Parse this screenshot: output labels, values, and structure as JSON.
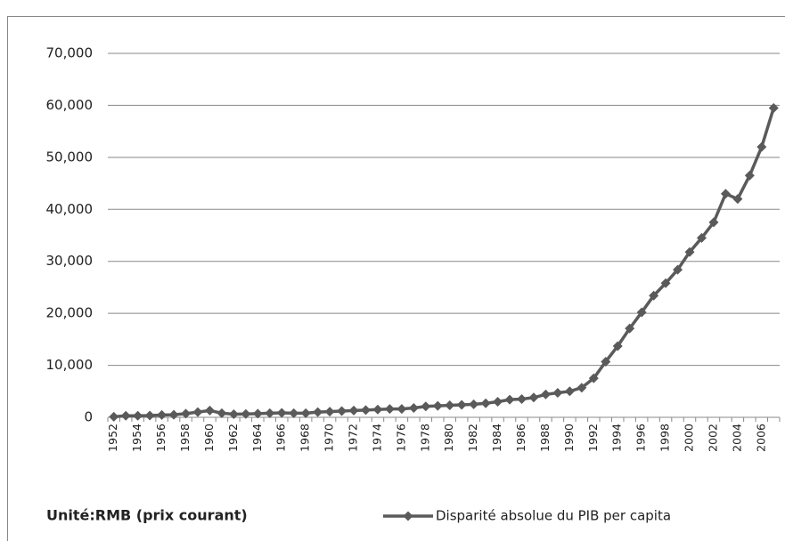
{
  "chart_data": {
    "type": "line",
    "categories": [
      "1952",
      null,
      "1954",
      null,
      "1956",
      null,
      "1958",
      null,
      "1960",
      null,
      "1962",
      null,
      "1964",
      null,
      "1966",
      null,
      "1968",
      null,
      "1970",
      null,
      "1972",
      null,
      "1974",
      null,
      "1976",
      null,
      "1978",
      null,
      "1980",
      null,
      "1982",
      null,
      "1984",
      null,
      "1986",
      null,
      "1988",
      null,
      "1990",
      null,
      "1992",
      null,
      "1994",
      null,
      "1996",
      null,
      "1998",
      null,
      "2000",
      null,
      "2002",
      null,
      "2004",
      null,
      "2006",
      null
    ],
    "series": [
      {
        "name": "Disparité absolue du PIB per capita",
        "color": "#5a5a5a",
        "values": [
          100,
          300,
          300,
          350,
          450,
          500,
          700,
          1000,
          1300,
          800,
          600,
          650,
          700,
          800,
          850,
          800,
          800,
          1000,
          1100,
          1200,
          1300,
          1400,
          1500,
          1600,
          1600,
          1800,
          2100,
          2200,
          2300,
          2400,
          2500,
          2700,
          3000,
          3400,
          3500,
          3800,
          4400,
          4700,
          5000,
          5700,
          7500,
          10700,
          13700,
          17100,
          20200,
          23400,
          25800,
          28400,
          31800,
          34500,
          37500,
          43000,
          42000,
          46500,
          52000,
          59500
        ]
      }
    ],
    "ylim": [
      0,
      70000
    ],
    "yticks": [
      0,
      {
        "value": 10000,
        "label": "10,000"
      },
      {
        "value": 20000,
        "label": "20,000"
      },
      {
        "value": 30000,
        "label": "30,000"
      },
      {
        "value": 40000,
        "label": "40,000"
      },
      {
        "value": 50000,
        "label": "50,000"
      },
      {
        "value": 60000,
        "label": "60,000"
      },
      {
        "value": 70000,
        "label": "70,000"
      }
    ],
    "grid": true,
    "annotation": "Unité:RMB (prix courant)"
  }
}
